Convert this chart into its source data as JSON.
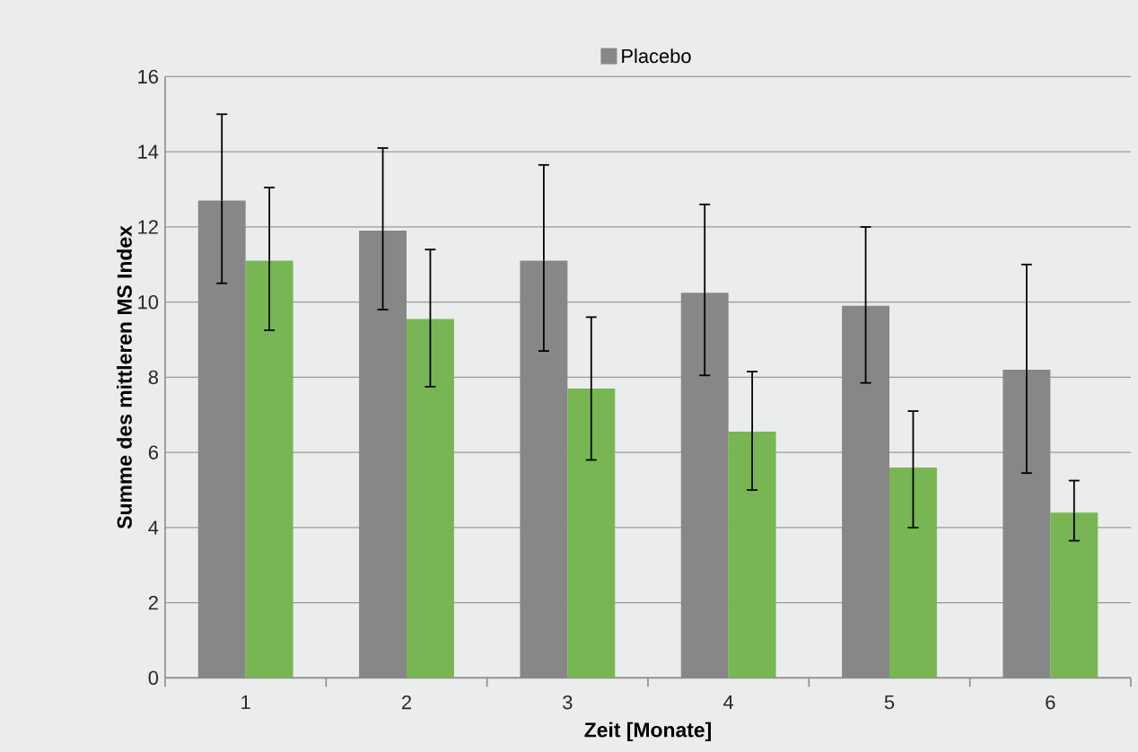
{
  "chart_data": {
    "type": "bar",
    "xlabel": "Zeit [Monate]",
    "ylabel": "Summe des mittleren MS Index",
    "categories": [
      "1",
      "2",
      "3",
      "4",
      "5",
      "6"
    ],
    "series": [
      {
        "name": "Placebo",
        "color": "#878787",
        "values": [
          12.7,
          11.9,
          11.1,
          10.25,
          9.9,
          8.2
        ],
        "errors": [
          [
            10.5,
            15.0
          ],
          [
            9.8,
            14.1
          ],
          [
            8.7,
            13.65
          ],
          [
            8.05,
            12.6
          ],
          [
            7.85,
            12.0
          ],
          [
            5.45,
            11.0
          ]
        ]
      },
      {
        "color": "#78b653",
        "values": [
          11.1,
          9.55,
          7.7,
          6.55,
          5.6,
          4.4
        ],
        "errors": [
          [
            9.25,
            13.05
          ],
          [
            7.75,
            11.4
          ],
          [
            5.8,
            9.6
          ],
          [
            5.0,
            8.15
          ],
          [
            4.0,
            7.1
          ],
          [
            3.65,
            5.25
          ]
        ]
      }
    ],
    "ylim": [
      0,
      16
    ],
    "yticks": [
      0,
      2,
      4,
      6,
      8,
      10,
      12,
      14,
      16
    ],
    "grid": "y",
    "legend": "top"
  }
}
